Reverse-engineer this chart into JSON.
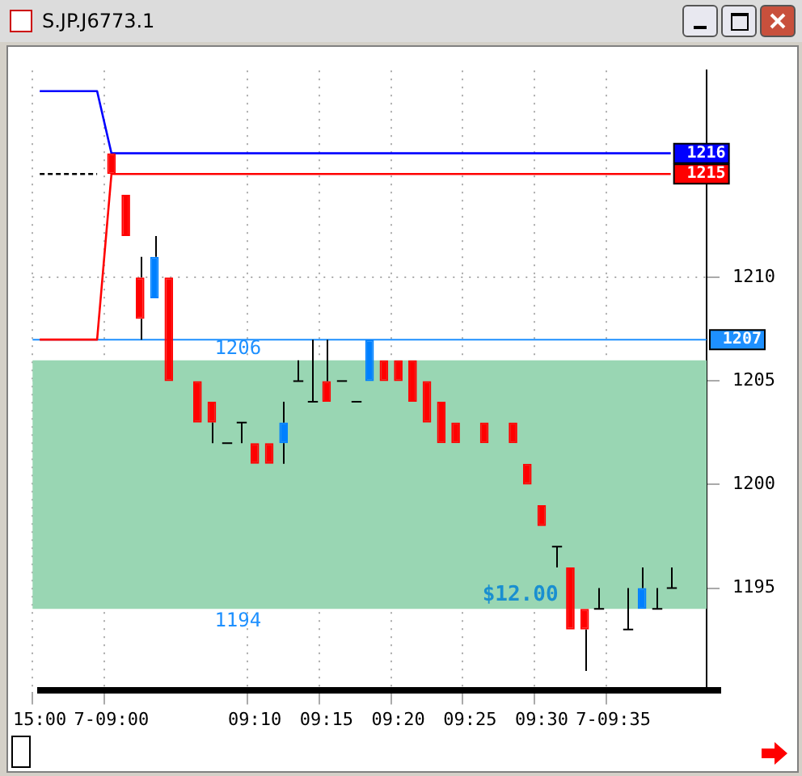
{
  "chart_data": {
    "type": "candlestick",
    "title": "S.JP.J6773.1",
    "categories": [
      "15:00",
      null,
      null,
      null,
      null,
      "7-09:00",
      null,
      null,
      null,
      null,
      null,
      null,
      null,
      null,
      null,
      "09:10",
      null,
      null,
      null,
      null,
      "09:15",
      null,
      null,
      null,
      null,
      "09:20",
      null,
      null,
      null,
      null,
      "09:25",
      null,
      null,
      null,
      null,
      "09:30",
      null,
      null,
      null,
      null,
      "7-09:35",
      null,
      null,
      null,
      null,
      null,
      null
    ],
    "ohlc": [
      null,
      null,
      null,
      null,
      null,
      [
        1216,
        1216,
        1215,
        1215
      ],
      [
        1214,
        1214,
        1212,
        1212
      ],
      [
        1210,
        1211,
        1207,
        1208
      ],
      [
        1209,
        1212,
        1209,
        1211
      ],
      [
        1210,
        1210,
        1205,
        1205
      ],
      null,
      [
        1205,
        1205,
        1203,
        1203
      ],
      [
        1204,
        1204,
        1202,
        1203
      ],
      [
        1202,
        1202,
        1202,
        1202
      ],
      [
        1203,
        1203,
        1202,
        1203
      ],
      [
        1202,
        1202,
        1201,
        1201
      ],
      [
        1202,
        1202,
        1201,
        1201
      ],
      [
        1202,
        1204,
        1201,
        1203
      ],
      [
        1205,
        1206,
        1205,
        1205
      ],
      [
        1204,
        1207,
        1204,
        1204
      ],
      [
        1205,
        1207,
        1204,
        1204
      ],
      [
        1205,
        1205,
        1205,
        1205
      ],
      [
        1204,
        1204,
        1204,
        1204
      ],
      [
        1205,
        1207,
        1205,
        1207
      ],
      [
        1206,
        1206,
        1205,
        1205
      ],
      [
        1206,
        1206,
        1205,
        1205
      ],
      [
        1206,
        1206,
        1204,
        1204
      ],
      [
        1205,
        1205,
        1203,
        1203
      ],
      [
        1204,
        1204,
        1202,
        1202
      ],
      [
        1203,
        1203,
        1202,
        1202
      ],
      null,
      [
        1203,
        1203,
        1202,
        1202
      ],
      null,
      [
        1203,
        1203,
        1202,
        1202
      ],
      [
        1201,
        1201,
        1200,
        1200
      ],
      [
        1199,
        1199,
        1198,
        1198
      ],
      [
        1197,
        1197,
        1196,
        1197
      ],
      [
        1196,
        1196,
        1193,
        1193
      ],
      [
        1194,
        1194,
        1191,
        1193
      ],
      [
        1194,
        1195,
        1194,
        1194
      ],
      null,
      [
        1193,
        1195,
        1193,
        1193
      ],
      [
        1194,
        1196,
        1194,
        1195
      ],
      [
        1194,
        1195,
        1194,
        1194
      ],
      [
        1195,
        1196,
        1195,
        1195
      ],
      null,
      null
    ],
    "colors": [
      "#000000",
      "#000000",
      "#000000",
      "#000000",
      "#000000",
      "#ff0000",
      "#ff0000",
      "#ff0000",
      "#0080ff",
      "#ff0000",
      "#000000",
      "#ff0000",
      "#ff0000",
      "#000000",
      "#000000",
      "#ff0000",
      "#ff0000",
      "#0080ff",
      "#000000",
      "#000000",
      "#ff0000",
      "#000000",
      "#000000",
      "#0080ff",
      "#ff0000",
      "#ff0000",
      "#ff0000",
      "#ff0000",
      "#ff0000",
      "#ff0000",
      "#000000",
      "#ff0000",
      "#000000",
      "#ff0000",
      "#ff0000",
      "#ff0000",
      "#000000",
      "#ff0000",
      "#ff0000",
      "#000000",
      "#000000",
      "#000000",
      "#0080ff",
      "#000000",
      "#000000",
      "#000000",
      "#000000"
    ],
    "series": [
      {
        "type": "line",
        "color": "#0000ff",
        "values": [
          1219,
          1219,
          1219,
          1219,
          1219,
          1216,
          1216,
          1216,
          1216,
          1216,
          1216,
          1216,
          1216,
          1216,
          1216,
          1216,
          1216,
          1216,
          1216,
          1216,
          1216,
          1216,
          1216,
          1216,
          1216,
          1216,
          1216,
          1216,
          1216,
          1216,
          1216,
          1216,
          1216,
          1216,
          1216,
          1216,
          1216,
          1216,
          1216,
          1216,
          1216,
          1216,
          1216,
          1216,
          1216,
          null,
          null
        ],
        "value_labels": [
          null,
          null,
          null,
          null,
          null,
          null,
          null,
          null,
          null,
          null,
          null,
          null,
          null,
          null,
          null,
          null,
          null,
          null,
          null,
          null,
          null,
          null,
          null,
          null,
          null,
          null,
          null,
          null,
          null,
          null,
          null,
          null,
          null,
          null,
          null,
          null,
          null,
          null,
          null,
          null,
          null,
          null,
          null,
          null,
          "1216",
          null,
          null
        ]
      },
      {
        "type": "line",
        "color": "#ff0000",
        "values": [
          1207,
          1207,
          1207,
          1207,
          1207,
          1215,
          1215,
          1215,
          1215,
          1215,
          1215,
          1215,
          1215,
          1215,
          1215,
          1215,
          1215,
          1215,
          1215,
          1215,
          1215,
          1215,
          1215,
          1215,
          1215,
          1215,
          1215,
          1215,
          1215,
          1215,
          1215,
          1215,
          1215,
          1215,
          1215,
          1215,
          1215,
          1215,
          1215,
          1215,
          1215,
          1215,
          1215,
          1215,
          1215,
          null,
          null
        ],
        "value_labels": [
          null,
          null,
          null,
          null,
          null,
          null,
          null,
          null,
          null,
          null,
          null,
          null,
          null,
          null,
          null,
          null,
          null,
          null,
          null,
          null,
          null,
          null,
          null,
          null,
          null,
          null,
          null,
          null,
          null,
          null,
          null,
          null,
          null,
          null,
          null,
          null,
          null,
          null,
          null,
          null,
          null,
          null,
          null,
          null,
          "1215",
          null,
          null
        ]
      },
      {
        "type": "line",
        "color": "#000000",
        "line_style": "dashed",
        "values": [
          1215,
          1215,
          1215,
          1215,
          1215,
          null,
          null,
          null,
          null,
          null,
          null,
          null,
          null,
          null,
          null,
          null,
          null,
          null,
          null,
          null,
          null,
          null,
          null,
          null,
          null,
          null,
          null,
          null,
          null,
          null,
          null,
          null,
          null,
          null,
          null,
          null,
          null,
          null,
          null,
          null,
          null,
          null,
          null,
          null,
          null,
          null,
          null
        ]
      }
    ],
    "ylim": [
      1190,
      1220
    ],
    "yticks": [
      1195,
      1200,
      1205,
      1210
    ],
    "grid": true,
    "marker": "none",
    "ref_lines": [
      {
        "axis": "y",
        "value": 1207,
        "label": "1207",
        "color": "#1e90ff"
      }
    ],
    "bands": [
      {
        "axis": "y",
        "from": 1194,
        "to": 1206,
        "label": "$12.00",
        "color": "#99d6b3"
      }
    ],
    "annotations": [
      {
        "text": "1206",
        "y": 1206
      },
      {
        "text": "1194",
        "y": 1194
      }
    ]
  }
}
